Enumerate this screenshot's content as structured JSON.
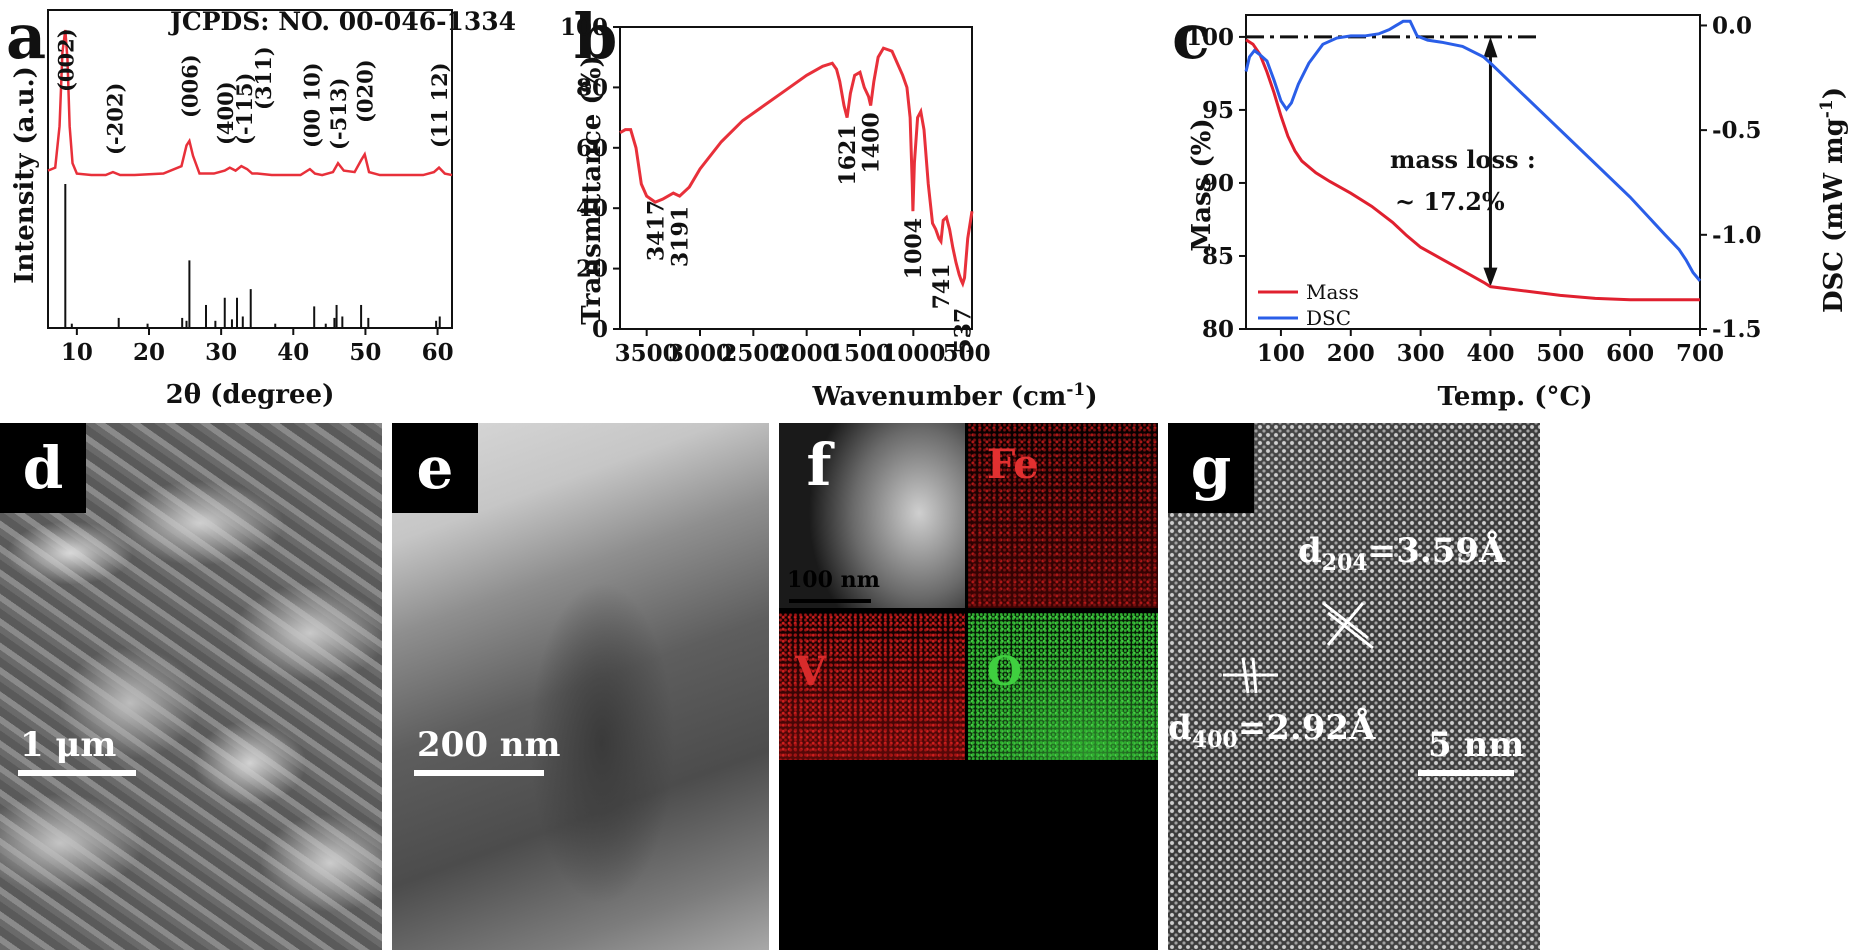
{
  "panels": {
    "a": {
      "letter": "a",
      "xlabel": "2θ (degree)",
      "ylabel": "Intensity (a.u.)",
      "reference": "JCPDS: NO. 00-046-1334"
    },
    "b": {
      "letter": "b",
      "xlabel": "Wavenumber (cm",
      "xlabel_sup": "-1",
      "xlabel_end": ")",
      "ylabel": "Transmittance (%)"
    },
    "c": {
      "letter": "c",
      "xlabel": "Temp. (°C)",
      "ylabel_left": "Mass (%)",
      "ylabel_right": "DSC (mW mg",
      "ylabel_right_sup": "-1",
      "ylabel_right_end": ")",
      "annotation_line1": "mass loss :",
      "annotation_line2": "~ 17.2%"
    },
    "d": {
      "letter": "d",
      "scale": "1 μm"
    },
    "e": {
      "letter": "e",
      "scale": "200 nm"
    },
    "f": {
      "letter": "f",
      "scale": "100 nm",
      "el_fe": "Fe",
      "el_v": "V",
      "el_o": "O"
    },
    "g": {
      "letter": "g",
      "scale": "5 nm",
      "d1_main": "d",
      "d1_sub": "204",
      "d1_val": "=3.59Å",
      "d2_main": "d",
      "d2_sub": "400",
      "d2_val": "=2.92Å"
    }
  },
  "chart_data": [
    {
      "type": "line",
      "panel": "a",
      "xlabel": "2θ (degree)",
      "ylabel": "Intensity (a.u.)",
      "xlim": [
        6,
        62
      ],
      "xticks": [
        10,
        20,
        30,
        40,
        50,
        60
      ],
      "color": "#e8303a",
      "series": [
        {
          "x": [
            6,
            7,
            7.6,
            8.0,
            8.4,
            8.7,
            9.0,
            9.4,
            10,
            12,
            14,
            15,
            16,
            18,
            22,
            24.5,
            25.2,
            25.6,
            26.1,
            27,
            29,
            30.5,
            31.2,
            32,
            32.8,
            33.6,
            34.3,
            35,
            37,
            41,
            42.3,
            43,
            44,
            45.5,
            46.2,
            47,
            48.5,
            49.4,
            49.9,
            50.5,
            52,
            55,
            58,
            59.5,
            60.2,
            61,
            62
          ],
          "y": [
            0.05,
            0.07,
            0.35,
            0.85,
            1.0,
            0.8,
            0.35,
            0.1,
            0.03,
            0.02,
            0.02,
            0.04,
            0.02,
            0.02,
            0.03,
            0.08,
            0.22,
            0.25,
            0.15,
            0.03,
            0.03,
            0.05,
            0.07,
            0.05,
            0.08,
            0.06,
            0.03,
            0.03,
            0.02,
            0.02,
            0.06,
            0.03,
            0.02,
            0.04,
            0.1,
            0.05,
            0.04,
            0.12,
            0.16,
            0.04,
            0.02,
            0.02,
            0.02,
            0.04,
            0.07,
            0.03,
            0.02
          ]
        }
      ],
      "peak_labels": [
        {
          "x": 8.4,
          "text": "(002)"
        },
        {
          "x": 15.2,
          "text": "(-202)"
        },
        {
          "x": 25.6,
          "text": "(006)"
        },
        {
          "x": 30.5,
          "text": "(400)"
        },
        {
          "x": 33.2,
          "text": "(-115)"
        },
        {
          "x": 35.8,
          "text": "(311)"
        },
        {
          "x": 42.5,
          "text": "(00 10)"
        },
        {
          "x": 46.2,
          "text": "(-513)"
        },
        {
          "x": 49.9,
          "text": "(020)"
        },
        {
          "x": 60.2,
          "text": "(11 12)"
        }
      ],
      "reference_lines": [
        {
          "x": 8.4,
          "h": 1.0
        },
        {
          "x": 9.3,
          "h": 0.03
        },
        {
          "x": 15.8,
          "h": 0.07
        },
        {
          "x": 19.8,
          "h": 0.03
        },
        {
          "x": 24.6,
          "h": 0.07
        },
        {
          "x": 25.2,
          "h": 0.05
        },
        {
          "x": 25.6,
          "h": 0.47
        },
        {
          "x": 27.9,
          "h": 0.16
        },
        {
          "x": 29.2,
          "h": 0.05
        },
        {
          "x": 30.5,
          "h": 0.21
        },
        {
          "x": 31.5,
          "h": 0.06
        },
        {
          "x": 32.2,
          "h": 0.21
        },
        {
          "x": 33.0,
          "h": 0.08
        },
        {
          "x": 34.1,
          "h": 0.27
        },
        {
          "x": 37.5,
          "h": 0.03
        },
        {
          "x": 42.9,
          "h": 0.15
        },
        {
          "x": 44.5,
          "h": 0.03
        },
        {
          "x": 45.7,
          "h": 0.07
        },
        {
          "x": 46.0,
          "h": 0.16
        },
        {
          "x": 46.8,
          "h": 0.08
        },
        {
          "x": 49.4,
          "h": 0.16
        },
        {
          "x": 50.4,
          "h": 0.07
        },
        {
          "x": 59.8,
          "h": 0.05
        },
        {
          "x": 60.3,
          "h": 0.08
        }
      ]
    },
    {
      "type": "line",
      "panel": "b",
      "xlabel": "Wavenumber (cm-1)",
      "ylabel": "Transmittance (%)",
      "xlim": [
        3750,
        450
      ],
      "ylim": [
        0,
        100
      ],
      "xticks": [
        3500,
        3000,
        2500,
        2000,
        1500,
        1000,
        500
      ],
      "yticks": [
        0,
        20,
        40,
        60,
        80,
        100
      ],
      "color": "#e8303a",
      "series": [
        {
          "x": [
            3750,
            3700,
            3650,
            3600,
            3550,
            3500,
            3420,
            3350,
            3250,
            3191,
            3100,
            3000,
            2800,
            2600,
            2400,
            2200,
            2000,
            1850,
            1760,
            1720,
            1690,
            1650,
            1621,
            1590,
            1550,
            1500,
            1460,
            1420,
            1400,
            1370,
            1330,
            1280,
            1200,
            1150,
            1100,
            1060,
            1030,
            1010,
            1004,
            990,
            960,
            930,
            900,
            860,
            820,
            790,
            760,
            741,
            720,
            690,
            660,
            630,
            600,
            570,
            550,
            537,
            520,
            490,
            450
          ],
          "y": [
            65,
            66,
            66,
            60,
            48,
            44,
            42,
            43,
            45,
            44,
            47,
            53,
            62,
            69,
            74,
            79,
            84,
            87,
            88,
            86,
            82,
            74,
            70,
            78,
            84,
            85,
            80,
            77,
            74,
            82,
            90,
            93,
            92,
            88,
            84,
            80,
            70,
            48,
            39,
            55,
            70,
            72,
            66,
            48,
            35,
            33,
            30,
            29,
            36,
            37,
            33,
            27,
            22,
            18,
            16,
            15,
            17,
            30,
            39
          ]
        }
      ],
      "peak_labels": [
        {
          "x": 3417,
          "text": "3417"
        },
        {
          "x": 3191,
          "text": "3191"
        },
        {
          "x": 1621,
          "text": "1621"
        },
        {
          "x": 1400,
          "text": "1400"
        },
        {
          "x": 1004,
          "text": "1004"
        },
        {
          "x": 741,
          "text": "741"
        },
        {
          "x": 537,
          "text": "537"
        }
      ]
    },
    {
      "type": "line",
      "panel": "c",
      "xlabel": "Temp. (°C)",
      "ylabel": "Mass (%)",
      "y2label": "DSC (mW mg-1)",
      "xlim": [
        50,
        700
      ],
      "ylim": [
        80,
        101.5
      ],
      "y2lim": [
        -1.45,
        0.05
      ],
      "xticks": [
        100,
        200,
        300,
        400,
        500,
        600,
        700
      ],
      "yticks": [
        80,
        85,
        90,
        95,
        100
      ],
      "y2ticks": [
        -1.5,
        -1.0,
        -0.5,
        0.0
      ],
      "legend": "bottom-left",
      "series": [
        {
          "name": "Mass",
          "color": "#e0202f",
          "axis": "left",
          "x": [
            50,
            60,
            70,
            80,
            90,
            100,
            110,
            120,
            130,
            150,
            170,
            200,
            230,
            260,
            280,
            300,
            330,
            360,
            390,
            400,
            450,
            500,
            550,
            600,
            650,
            700
          ],
          "y": [
            99.8,
            99.5,
            98.8,
            97.6,
            96.2,
            94.6,
            93.2,
            92.2,
            91.5,
            90.7,
            90.1,
            89.3,
            88.4,
            87.3,
            86.4,
            85.6,
            84.8,
            84.0,
            83.2,
            82.9,
            82.6,
            82.3,
            82.1,
            82.0,
            82.0,
            82.0
          ]
        },
        {
          "name": "DSC",
          "color": "#2a5ee8",
          "axis": "right",
          "x": [
            50,
            55,
            62,
            70,
            80,
            90,
            100,
            108,
            115,
            125,
            140,
            160,
            180,
            200,
            220,
            240,
            255,
            265,
            275,
            285,
            295,
            310,
            330,
            360,
            390,
            400,
            450,
            500,
            550,
            600,
            650,
            670,
            680,
            690,
            700
          ],
          "y": [
            -0.22,
            -0.15,
            -0.12,
            -0.14,
            -0.17,
            -0.26,
            -0.36,
            -0.4,
            -0.37,
            -0.28,
            -0.18,
            -0.09,
            -0.06,
            -0.05,
            -0.05,
            -0.04,
            -0.02,
            0.0,
            0.02,
            0.02,
            -0.05,
            -0.07,
            -0.08,
            -0.1,
            -0.15,
            -0.18,
            -0.34,
            -0.5,
            -0.66,
            -0.82,
            -1.0,
            -1.07,
            -1.12,
            -1.18,
            -1.22
          ]
        }
      ],
      "reference_y": 100
    }
  ]
}
